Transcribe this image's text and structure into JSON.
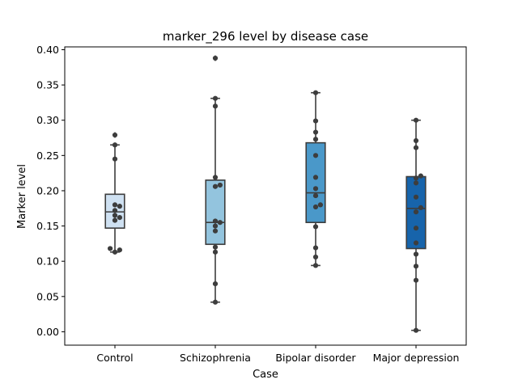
{
  "chart_data": {
    "type": "box",
    "title": "marker_296 level by disease case",
    "xlabel": "Case",
    "ylabel": "Marker level",
    "ylim": [
      -0.019,
      0.404
    ],
    "yticks": [
      "0.00",
      "0.05",
      "0.10",
      "0.15",
      "0.20",
      "0.25",
      "0.30",
      "0.35",
      "0.40"
    ],
    "grid": false,
    "categories": [
      "Control",
      "Schizophrenia",
      "Bipolar disorder",
      "Major depression"
    ],
    "colors": [
      "#cfe1f2",
      "#93c4de",
      "#4a98c9",
      "#1764ab"
    ],
    "boxes": [
      {
        "q1": 0.147,
        "median": 0.17,
        "q3": 0.195,
        "whisker_low": 0.113,
        "whisker_high": 0.265,
        "outliers": [
          0.279
        ]
      },
      {
        "q1": 0.124,
        "median": 0.155,
        "q3": 0.215,
        "whisker_low": 0.042,
        "whisker_high": 0.331,
        "outliers": [
          0.388
        ]
      },
      {
        "q1": 0.155,
        "median": 0.197,
        "q3": 0.268,
        "whisker_low": 0.094,
        "whisker_high": 0.339,
        "outliers": []
      },
      {
        "q1": 0.118,
        "median": 0.175,
        "q3": 0.22,
        "whisker_low": 0.002,
        "whisker_high": 0.3,
        "outliers": []
      }
    ],
    "points": [
      [
        0.279,
        0.265,
        0.245,
        0.18,
        0.178,
        0.172,
        0.165,
        0.162,
        0.158,
        0.118,
        0.116,
        0.113
      ],
      [
        0.388,
        0.331,
        0.32,
        0.219,
        0.208,
        0.206,
        0.157,
        0.155,
        0.15,
        0.143,
        0.12,
        0.113,
        0.068,
        0.042
      ],
      [
        0.339,
        0.299,
        0.283,
        0.273,
        0.25,
        0.219,
        0.203,
        0.193,
        0.18,
        0.177,
        0.149,
        0.119,
        0.106,
        0.094
      ],
      [
        0.3,
        0.271,
        0.261,
        0.221,
        0.218,
        0.211,
        0.191,
        0.176,
        0.17,
        0.147,
        0.126,
        0.11,
        0.093,
        0.073,
        0.002
      ]
    ]
  }
}
